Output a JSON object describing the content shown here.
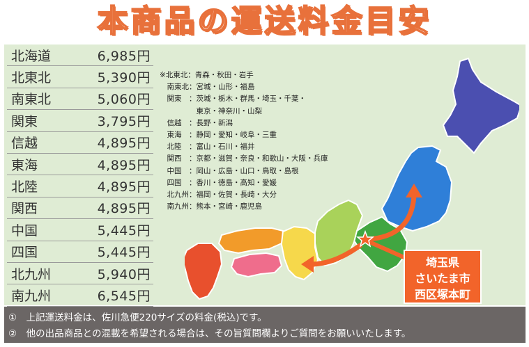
{
  "title": "本商品の運送料金目安",
  "rates": [
    {
      "region": "北海道",
      "price": "6,985円"
    },
    {
      "region": "北東北",
      "price": "5,390円"
    },
    {
      "region": "南東北",
      "price": "5,060円"
    },
    {
      "region": "関東",
      "price": "3,795円"
    },
    {
      "region": "信越",
      "price": "4,895円"
    },
    {
      "region": "東海",
      "price": "4,895円"
    },
    {
      "region": "北陸",
      "price": "4,895円"
    },
    {
      "region": "関西",
      "price": "4,895円"
    },
    {
      "region": "中国",
      "price": "5,445円"
    },
    {
      "region": "四国",
      "price": "5,445円"
    },
    {
      "region": "北九州",
      "price": "5,940円"
    },
    {
      "region": "南九州",
      "price": "6,545円"
    }
  ],
  "region_notes": [
    "※北東北：青森・秋田・岩手",
    "　南東北：宮城・山形・福島",
    "　関東　：茨城・栃木・群馬・埼玉・千葉・",
    "　　　　　東京・神奈川・山梨",
    "　信越　：長野・新潟",
    "　東海　：静岡・愛知・岐阜・三重",
    "　北陸　：富山・石川・福井",
    "　関西　：京都・滋賀・奈良・和歌山・大阪・兵庫",
    "　中国　：岡山・広島・山口・鳥取・島根",
    "　四国　：香川・徳島・高知・愛媛",
    "　北九州：福岡・佐賀・長崎・大分",
    "　南九州：熊本・宮崎・鹿児島"
  ],
  "origin": {
    "line1": "埼玉県",
    "line2": "さいたま市",
    "line3": "西区塚本町"
  },
  "footer": {
    "note1": "①　上記運送料金は、佐川急便220サイズの料金(税込)です。",
    "note2": "②　他の出品商品との混載を希望される場合は、その旨質問欄よりご質問をお願いいたします。"
  },
  "colors": {
    "hokkaido": "#4b4fb0",
    "tohoku": "#2f7fd8",
    "kanto_shinetsu": "#41a641",
    "chubu": "#a9d25a",
    "kansai": "#f6d84b",
    "chugoku": "#f29b2a",
    "shikoku": "#ef6d8c",
    "kyushu": "#e8502d",
    "arrow": "#f2642a"
  }
}
